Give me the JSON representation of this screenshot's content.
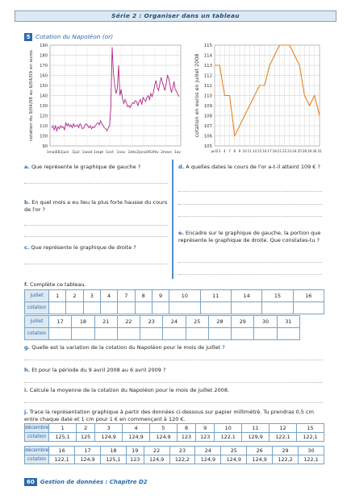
{
  "header": "Série 2 : Organiser dans un tableau",
  "exercise": {
    "number": "5",
    "title": "Cotation du Napoléon (or)"
  },
  "chart_data": [
    {
      "type": "line",
      "ylabel": "cotation du 9/04/08 au 6/04/09 en euros",
      "ylim": [
        90,
        190
      ],
      "yticks": [
        "90",
        "100",
        "110",
        "120",
        "130",
        "140",
        "150",
        "160",
        "170",
        "180",
        "190"
      ],
      "xticks": [
        "1mai08",
        "2juin",
        "1juil",
        "1août",
        "1sept",
        "1oct",
        "1nov",
        "1déc",
        "2janv09",
        "2fév",
        "2mars",
        "1av"
      ],
      "series": [
        {
          "values": [
            108,
            110,
            106,
            110,
            105,
            109,
            107,
            110,
            108,
            109,
            106,
            113,
            110,
            112,
            109,
            111,
            108,
            112,
            109,
            110,
            111,
            108,
            112,
            110,
            107,
            108,
            111,
            112,
            110,
            108,
            110,
            107,
            109,
            108,
            110,
            112,
            113,
            111,
            115,
            112,
            110,
            108,
            107,
            105,
            108,
            110,
            128,
            188,
            162,
            150,
            142,
            147,
            170,
            140,
            146,
            137,
            132,
            136,
            133,
            129,
            130,
            128,
            131,
            133,
            132,
            135,
            134,
            130,
            134,
            136,
            131,
            138,
            136,
            134,
            138,
            140,
            136,
            142,
            139,
            143,
            150,
            155,
            148,
            145,
            152,
            158,
            153,
            149,
            145,
            152,
            160,
            157,
            150,
            143,
            147,
            154,
            146,
            144,
            141,
            139
          ]
        }
      ]
    },
    {
      "type": "line",
      "ylabel": "cotation en euros en juillet 2008",
      "ylim": [
        105,
        115
      ],
      "yticks": [
        "105",
        "106",
        "107",
        "108",
        "109",
        "110",
        "111",
        "112",
        "113",
        "114",
        "115"
      ],
      "x": [
        "juil2",
        "3",
        "4",
        "7",
        "8",
        "9",
        "10",
        "11",
        "14",
        "15",
        "16",
        "17",
        "18",
        "21",
        "22",
        "23",
        "24",
        "25",
        "28",
        "29",
        "30",
        "31"
      ],
      "values": [
        113,
        113,
        110,
        110,
        106,
        107,
        108,
        109,
        110,
        111,
        111,
        113,
        114,
        115,
        115,
        115,
        114,
        113,
        110,
        109,
        110,
        108
      ]
    }
  ],
  "questions": {
    "a": {
      "label": "a.",
      "text": "Que représente le graphique de gauche ?"
    },
    "b": {
      "label": "b.",
      "text": "En quel mois a eu lieu la plus forte hausse du cours de l'or ?"
    },
    "c": {
      "label": "c.",
      "text": "Que représente le graphique de droite ?"
    },
    "d": {
      "label": "d.",
      "text": "A quelles dates le cours de l'or a-t-il atteint 109 € ?"
    },
    "e": {
      "label": "e.",
      "text": "Encadre sur le graphique de gauche, la portion que représente le graphique de droite. Que constates-tu ?"
    },
    "f": {
      "label": "f.",
      "text": "Complète ce tableau."
    },
    "g": {
      "label": "g.",
      "text": "Quelle est la variation de la cotation du Napoléon pour le mois de juillet ?"
    },
    "h": {
      "label": "h.",
      "text": "Et pour la période du 9 avril 2008 au 6 avril 2009 ?"
    },
    "i": {
      "label": "i.",
      "text": "Calcule la moyenne de la cotation du Napoléon pour le mois de juillet 2008."
    },
    "j": {
      "label": "j.",
      "text": "Trace la représentation graphique à partir des données ci-dessous sur papier millimétré. Tu prendras 0,5 cm entre chaque date et 1 cm pour 1 € en commençant à 120 €."
    }
  },
  "table_f": {
    "row_label_1": "juillet",
    "row_label_2": "cotation",
    "row1_days": [
      "1",
      "2",
      "3",
      "4",
      "7",
      "8",
      "9",
      "10",
      "11",
      "14",
      "15",
      "16"
    ],
    "row2_days": [
      "17",
      "18",
      "21",
      "22",
      "23",
      "24",
      "25",
      "28",
      "29",
      "30",
      "31"
    ]
  },
  "table_j": {
    "row_label_1": "décembre",
    "row_label_2": "cotation",
    "days_1": [
      "1",
      "2",
      "3",
      "4",
      "5",
      "8",
      "9",
      "10",
      "11",
      "12",
      "15"
    ],
    "vals_1": [
      "125,1",
      "125",
      "124,9",
      "124,9",
      "124,9",
      "123",
      "123",
      "122,1",
      "129,9",
      "122,1",
      "122,1"
    ],
    "days_2": [
      "16",
      "17",
      "18",
      "19",
      "22",
      "23",
      "24",
      "25",
      "26",
      "29",
      "30"
    ],
    "vals_2": [
      "122,1",
      "124,9",
      "125,1",
      "123",
      "124,9",
      "122,2",
      "124,9",
      "124,9",
      "124,9",
      "122,2",
      "122,1"
    ]
  },
  "footer": {
    "page": "60",
    "text": "Gestion de données : Chapitre D2"
  }
}
